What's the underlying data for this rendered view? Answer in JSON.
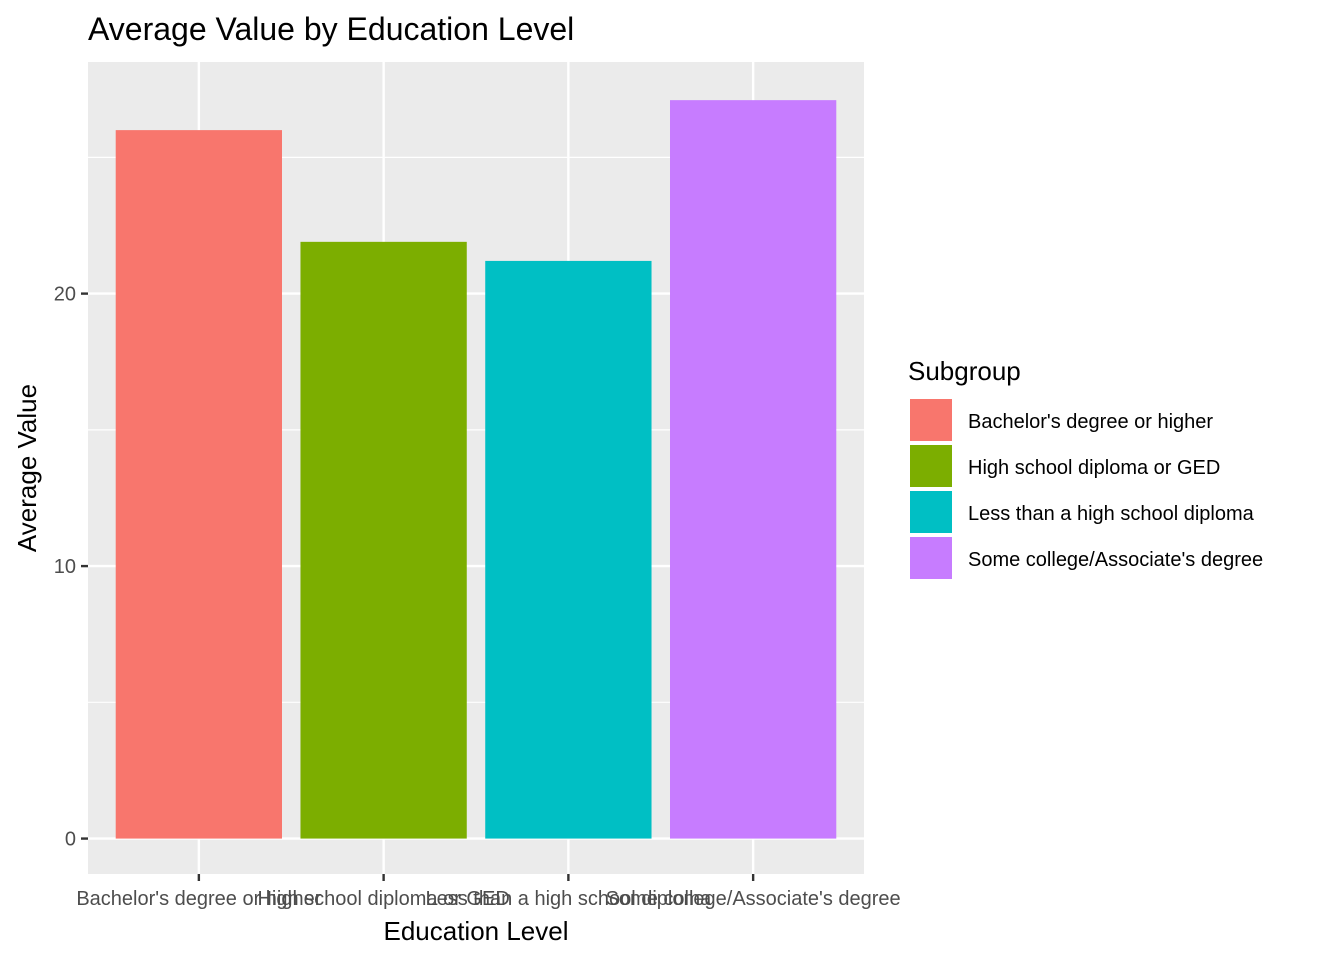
{
  "chart_data": {
    "type": "bar",
    "title": "Average Value by Education Level",
    "xlabel": "Education Level",
    "ylabel": "Average Value",
    "categories": [
      "Bachelor's degree or higher",
      "High school diploma or GED",
      "Less than a high school diploma",
      "Some college/Associate's degree"
    ],
    "values": [
      26.0,
      21.9,
      21.2,
      27.1
    ],
    "ylim": [
      -1.3,
      28.5
    ],
    "yticks": [
      0,
      10,
      20
    ],
    "ytick_labels": [
      "0",
      "10",
      "20"
    ],
    "grid": true,
    "legend": {
      "title": "Subgroup",
      "position": "right",
      "entries": [
        "Bachelor's degree or higher",
        "High school diploma or GED",
        "Less than a high school diploma",
        "Some college/Associate's degree"
      ]
    },
    "colors": [
      "#F8766D",
      "#7CAE00",
      "#00BFC4",
      "#C77CFF"
    ],
    "panel_background": "#EBEBEB"
  }
}
